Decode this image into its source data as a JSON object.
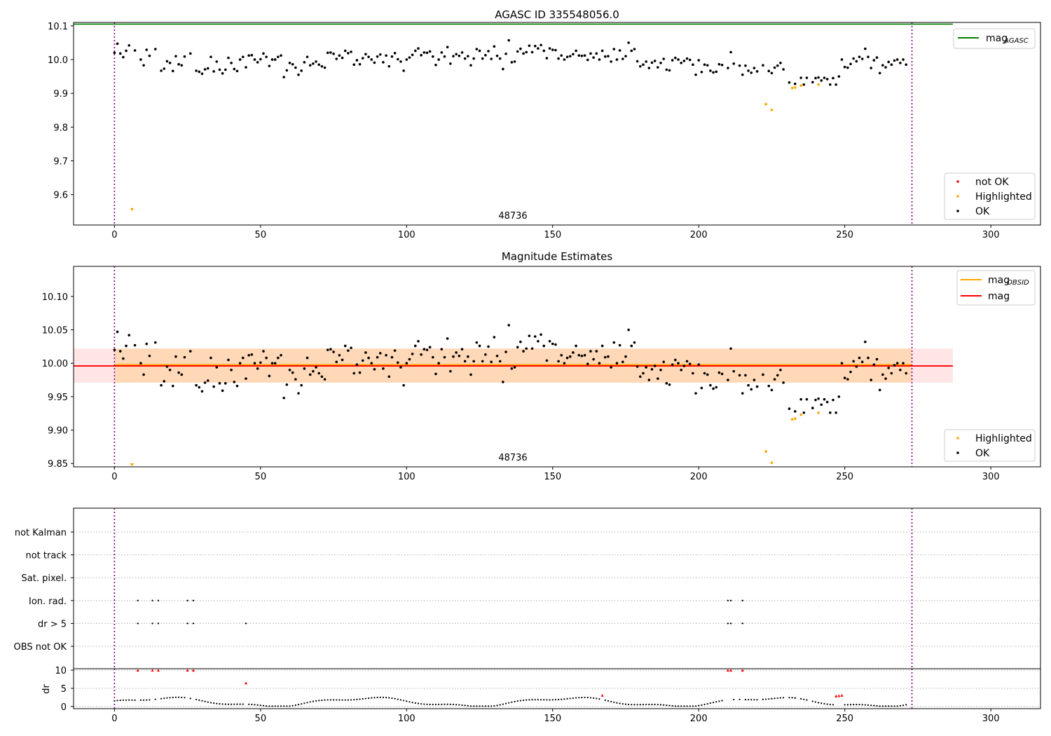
{
  "chart_data": [
    {
      "type": "scatter",
      "title": "AGASC ID 335548056.0",
      "annotation": "48736",
      "xlim": [
        -14,
        317
      ],
      "ylim": [
        9.51,
        10.11
      ],
      "x_ticks": [
        0,
        50,
        100,
        150,
        200,
        250,
        300
      ],
      "y_ticks": [
        9.6,
        9.7,
        9.8,
        9.9,
        10.0,
        10.1
      ],
      "y_tick_labels": [
        "9.6",
        "9.7",
        "9.8",
        "9.9",
        "10.0",
        "10.1"
      ],
      "obsid_bounds": [
        0,
        273
      ],
      "mag_agasc": 10.105,
      "mag_agasc_range": [
        -14,
        287
      ],
      "legend_lines": [
        {
          "label": "mag",
          "sub": "AGASC",
          "color": "#008000"
        }
      ],
      "legend_points": [
        {
          "label": "not OK",
          "color": "#ff0000"
        },
        {
          "label": "Highlighted",
          "color": "#ffa500"
        },
        {
          "label": "OK",
          "color": "#000000"
        }
      ],
      "highlighted": [
        [
          6,
          9.557
        ],
        [
          223,
          9.868
        ],
        [
          225,
          9.851
        ],
        [
          232,
          9.916
        ],
        [
          233,
          9.917
        ],
        [
          235,
          9.923
        ],
        [
          241,
          9.926
        ]
      ],
      "ok_series": [
        [
          0,
          10.02
        ],
        [
          1,
          10.047
        ],
        [
          2,
          10.018
        ],
        [
          3,
          10.007
        ],
        [
          4,
          10.026
        ],
        [
          5,
          10.042
        ],
        [
          7,
          10.027
        ],
        [
          9,
          10.0
        ],
        [
          10,
          9.983
        ],
        [
          11,
          10.029
        ],
        [
          12,
          10.011
        ],
        [
          14,
          10.031
        ],
        [
          16,
          9.967
        ],
        [
          17,
          9.973
        ],
        [
          18,
          9.995
        ],
        [
          19,
          9.99
        ],
        [
          20,
          9.966
        ],
        [
          21,
          10.01
        ],
        [
          22,
          9.986
        ],
        [
          23,
          9.983
        ],
        [
          24,
          10.009
        ],
        [
          26,
          10.018
        ],
        [
          28,
          9.967
        ],
        [
          29,
          9.964
        ],
        [
          30,
          9.958
        ],
        [
          31,
          9.971
        ],
        [
          32,
          9.974
        ],
        [
          33,
          10.008
        ],
        [
          34,
          9.965
        ],
        [
          35,
          9.994
        ],
        [
          36,
          9.97
        ],
        [
          37,
          9.959
        ],
        [
          38,
          9.97
        ],
        [
          39,
          10.005
        ],
        [
          40,
          9.99
        ],
        [
          41,
          9.972
        ],
        [
          42,
          9.966
        ],
        [
          43,
          10.0
        ],
        [
          44,
          10.008
        ],
        [
          45,
          9.977
        ],
        [
          46,
          10.012
        ],
        [
          47,
          10.013
        ],
        [
          48,
          10.0
        ],
        [
          49,
          9.992
        ],
        [
          50,
          10.001
        ],
        [
          51,
          10.018
        ],
        [
          52,
          10.008
        ],
        [
          53,
          9.981
        ],
        [
          54,
          10.0
        ],
        [
          55,
          10.0
        ],
        [
          56,
          10.008
        ],
        [
          57,
          10.012
        ],
        [
          58,
          9.948
        ],
        [
          59,
          9.968
        ],
        [
          60,
          9.99
        ],
        [
          61,
          9.986
        ],
        [
          62,
          9.976
        ],
        [
          63,
          9.955
        ],
        [
          64,
          9.967
        ],
        [
          65,
          9.992
        ],
        [
          66,
          10.008
        ],
        [
          67,
          9.983
        ],
        [
          68,
          9.988
        ],
        [
          69,
          9.994
        ],
        [
          70,
          9.985
        ],
        [
          71,
          9.98
        ],
        [
          72,
          9.976
        ],
        [
          73,
          10.02
        ],
        [
          74,
          10.021
        ],
        [
          75,
          10.017
        ],
        [
          76,
          10.002
        ],
        [
          77,
          10.012
        ],
        [
          78,
          10.005
        ],
        [
          79,
          10.026
        ],
        [
          80,
          10.019
        ],
        [
          81,
          10.023
        ],
        [
          82,
          9.985
        ],
        [
          83,
          9.998
        ],
        [
          84,
          9.986
        ],
        [
          85,
          10.004
        ],
        [
          86,
          10.016
        ],
        [
          87,
          10.008
        ],
        [
          88,
          10.0
        ],
        [
          89,
          9.991
        ],
        [
          90,
          10.009
        ],
        [
          91,
          10.015
        ],
        [
          92,
          9.992
        ],
        [
          93,
          10.012
        ],
        [
          94,
          9.98
        ],
        [
          95,
          10.009
        ],
        [
          96,
          10.019
        ],
        [
          97,
          10.001
        ],
        [
          98,
          9.994
        ],
        [
          99,
          9.967
        ],
        [
          100,
          10.0
        ],
        [
          101,
          10.006
        ],
        [
          102,
          10.014
        ],
        [
          103,
          10.026
        ],
        [
          104,
          10.033
        ],
        [
          105,
          10.013
        ],
        [
          106,
          10.021
        ],
        [
          107,
          10.02
        ],
        [
          108,
          10.024
        ],
        [
          109,
          10.009
        ],
        [
          110,
          9.984
        ],
        [
          111,
          10.0
        ],
        [
          112,
          10.021
        ],
        [
          113,
          10.009
        ],
        [
          114,
          10.037
        ],
        [
          115,
          9.988
        ],
        [
          116,
          10.01
        ],
        [
          117,
          10.016
        ],
        [
          118,
          10.011
        ],
        [
          119,
          10.021
        ],
        [
          120,
          10.003
        ],
        [
          121,
          10.01
        ],
        [
          122,
          9.983
        ],
        [
          123,
          10.003
        ],
        [
          124,
          10.031
        ],
        [
          125,
          10.026
        ],
        [
          126,
          10.003
        ],
        [
          127,
          10.013
        ],
        [
          128,
          10.025
        ],
        [
          129,
          10.002
        ],
        [
          130,
          10.039
        ],
        [
          131,
          10.011
        ],
        [
          132,
          10.003
        ],
        [
          133,
          9.972
        ],
        [
          134,
          10.017
        ],
        [
          135,
          10.057
        ],
        [
          136,
          9.992
        ],
        [
          137,
          9.994
        ],
        [
          138,
          10.024
        ],
        [
          139,
          10.032
        ],
        [
          140,
          10.018
        ],
        [
          141,
          10.022
        ],
        [
          142,
          10.041
        ],
        [
          143,
          10.022
        ],
        [
          144,
          10.04
        ],
        [
          145,
          10.033
        ],
        [
          146,
          10.043
        ],
        [
          147,
          10.026
        ],
        [
          148,
          10.004
        ],
        [
          149,
          10.033
        ],
        [
          150,
          10.029
        ],
        [
          151,
          10.028
        ],
        [
          152,
          10.003
        ],
        [
          153,
          10.012
        ],
        [
          154,
          10.0
        ],
        [
          155,
          10.008
        ],
        [
          156,
          10.01
        ],
        [
          157,
          10.016
        ],
        [
          158,
          10.026
        ],
        [
          159,
          10.012
        ],
        [
          160,
          10.011
        ],
        [
          161,
          10.012
        ],
        [
          162,
          9.999
        ],
        [
          163,
          10.018
        ],
        [
          164,
          10.006
        ],
        [
          165,
          10.018
        ],
        [
          166,
          10.0
        ],
        [
          167,
          10.026
        ],
        [
          168,
          10.009
        ],
        [
          169,
          10.01
        ],
        [
          170,
          9.994
        ],
        [
          171,
          10.031
        ],
        [
          172,
          10.0
        ],
        [
          173,
          10.027
        ],
        [
          174,
          10.002
        ],
        [
          175,
          10.01
        ],
        [
          176,
          10.05
        ],
        [
          177,
          10.026
        ],
        [
          178,
          10.031
        ],
        [
          179,
          9.995
        ],
        [
          180,
          9.98
        ],
        [
          181,
          9.985
        ],
        [
          182,
          9.994
        ],
        [
          183,
          9.975
        ],
        [
          184,
          9.991
        ],
        [
          185,
          9.996
        ],
        [
          186,
          9.977
        ],
        [
          187,
          9.99
        ],
        [
          188,
          10.002
        ],
        [
          189,
          9.97
        ],
        [
          190,
          9.968
        ],
        [
          191,
          9.998
        ],
        [
          192,
          10.005
        ],
        [
          193,
          10.0
        ],
        [
          194,
          9.99
        ],
        [
          195,
          9.996
        ],
        [
          196,
          10.003
        ],
        [
          197,
          9.999
        ],
        [
          198,
          9.985
        ],
        [
          199,
          9.955
        ],
        [
          200,
          9.998
        ],
        [
          201,
          9.963
        ],
        [
          202,
          9.985
        ],
        [
          203,
          9.983
        ],
        [
          204,
          9.967
        ],
        [
          205,
          9.962
        ],
        [
          206,
          9.964
        ],
        [
          207,
          9.986
        ],
        [
          208,
          9.984
        ],
        [
          210,
          9.975
        ],
        [
          211,
          10.022
        ],
        [
          212,
          9.988
        ],
        [
          214,
          9.982
        ],
        [
          215,
          9.955
        ],
        [
          216,
          9.982
        ],
        [
          217,
          9.967
        ],
        [
          218,
          9.961
        ],
        [
          219,
          9.975
        ],
        [
          220,
          9.965
        ],
        [
          222,
          9.983
        ],
        [
          224,
          9.966
        ],
        [
          225,
          9.96
        ],
        [
          226,
          9.976
        ],
        [
          227,
          9.982
        ],
        [
          228,
          9.99
        ],
        [
          229,
          9.971
        ],
        [
          231,
          9.932
        ],
        [
          233,
          9.928
        ],
        [
          235,
          9.946
        ],
        [
          236,
          9.926
        ],
        [
          237,
          9.946
        ],
        [
          239,
          9.933
        ],
        [
          240,
          9.945
        ],
        [
          241,
          9.947
        ],
        [
          242,
          9.938
        ],
        [
          243,
          9.946
        ],
        [
          244,
          9.942
        ],
        [
          245,
          9.926
        ],
        [
          246,
          9.945
        ],
        [
          247,
          9.926
        ],
        [
          248,
          9.95
        ],
        [
          249,
          10.0
        ],
        [
          250,
          9.978
        ],
        [
          251,
          9.976
        ],
        [
          252,
          9.987
        ],
        [
          253,
          10.003
        ],
        [
          254,
          9.995
        ],
        [
          255,
          10.008
        ],
        [
          256,
          10.002
        ],
        [
          257,
          10.032
        ],
        [
          258,
          10.008
        ],
        [
          259,
          9.975
        ],
        [
          260,
          9.998
        ],
        [
          261,
          10.006
        ],
        [
          262,
          9.96
        ],
        [
          263,
          9.983
        ],
        [
          264,
          9.977
        ],
        [
          265,
          9.993
        ],
        [
          266,
          9.985
        ],
        [
          267,
          9.997
        ],
        [
          268,
          10.0
        ],
        [
          269,
          9.99
        ],
        [
          270,
          10.0
        ],
        [
          271,
          9.985
        ]
      ]
    },
    {
      "type": "scatter",
      "title": "Magnitude Estimates",
      "annotation": "48736",
      "xlim": [
        -14,
        317
      ],
      "ylim": [
        9.845,
        10.145
      ],
      "x_ticks": [
        0,
        50,
        100,
        150,
        200,
        250,
        300
      ],
      "y_ticks": [
        9.85,
        9.9,
        9.95,
        10.0,
        10.05,
        10.1
      ],
      "y_tick_labels": [
        "9.85",
        "9.90",
        "9.95",
        "10.00",
        "10.05",
        "10.10"
      ],
      "obsid_bounds": [
        0,
        273
      ],
      "mag": 9.996,
      "mag_range": [
        -14,
        287
      ],
      "mag_band": [
        9.971,
        10.022
      ],
      "mag_obsid": 9.996,
      "mag_obsid_range": [
        0,
        273
      ],
      "legend_lines": [
        {
          "label": "mag",
          "sub": "OBSID",
          "color": "#ffa500"
        },
        {
          "label": "mag",
          "sub": "",
          "color": "#ff0000"
        }
      ],
      "legend_points": [
        {
          "label": "Highlighted",
          "color": "#ffa500"
        },
        {
          "label": "OK",
          "color": "#000000"
        }
      ]
    },
    {
      "type": "scatter",
      "categories": [
        "not Kalman",
        "not track",
        "Sat. pixel.",
        "Ion. rad.",
        "dr > 5",
        "OBS not OK"
      ],
      "xlim": [
        -14,
        317
      ],
      "x_ticks": [
        0,
        50,
        100,
        150,
        200,
        250,
        300
      ],
      "obsid_bounds": [
        0,
        273
      ],
      "flags": {
        "Ion. rad.": [
          8,
          13,
          15,
          25,
          27,
          210,
          211,
          215
        ],
        "dr > 5": [
          8,
          13,
          15,
          25,
          27,
          45,
          210,
          211,
          215
        ]
      },
      "ylabel": "dr",
      "dr_ylim": [
        -0.6,
        10.4
      ],
      "dr_y_ticks": [
        0,
        5,
        10
      ],
      "dr_flagged": [
        [
          8,
          10
        ],
        [
          13,
          10
        ],
        [
          15,
          10
        ],
        [
          25,
          10
        ],
        [
          27,
          10
        ],
        [
          45,
          6.5
        ],
        [
          167,
          3.1
        ],
        [
          210,
          10
        ],
        [
          211,
          10
        ],
        [
          215,
          10
        ],
        [
          247,
          2.9
        ],
        [
          248,
          3.0
        ],
        [
          249,
          3.1
        ]
      ]
    }
  ]
}
